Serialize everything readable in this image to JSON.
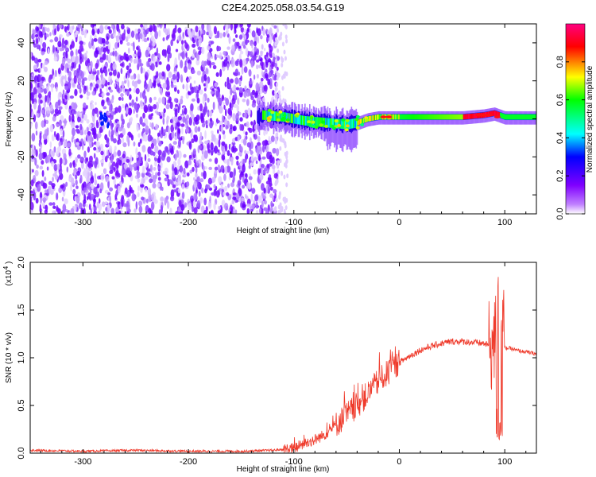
{
  "title": "C2E4.2025.058.03.54.G19",
  "chart_data": [
    {
      "type": "heatmap",
      "xlabel": "Height of straight line (km)",
      "ylabel": "Frequency (Hz)",
      "xlim": [
        -350,
        130
      ],
      "ylim": [
        -50,
        50
      ],
      "x_ticks": [
        -300,
        -200,
        -100,
        0,
        100
      ],
      "y_ticks": [
        -40,
        -20,
        0,
        20,
        40
      ],
      "colorbar": {
        "label": "Normalized spectral amplitude",
        "range": [
          0,
          1
        ],
        "ticks": [
          "0.0",
          "0.2",
          "0.4",
          "0.6",
          "0.8"
        ],
        "tick_values": [
          0,
          0.2,
          0.4,
          0.6,
          0.8
        ],
        "colors": [
          "#ffffff",
          "#8000ff",
          "#0000ff",
          "#00ffff",
          "#00ff00",
          "#ffff00",
          "#ff0000",
          "#ff0080"
        ]
      },
      "ridge": {
        "x": [
          -130,
          -110,
          -90,
          -70,
          -50,
          -40,
          -30,
          -20,
          0,
          20,
          40,
          60,
          80,
          90,
          100,
          130
        ],
        "y": [
          2,
          1,
          -1,
          -2,
          -3,
          -2,
          0,
          1,
          1,
          1,
          1,
          1,
          2,
          3,
          1,
          1
        ]
      }
    },
    {
      "type": "line",
      "xlabel": "Height of straight line (km)",
      "ylabel": "SNR (10 * v/v)",
      "y_multiplier": "(x10",
      "y_multiplier_exp": "4",
      "xlim": [
        -350,
        130
      ],
      "ylim": [
        0,
        2
      ],
      "x_ticks": [
        -300,
        -200,
        -100,
        0,
        100
      ],
      "y_ticks": [
        "0.0",
        "0.5",
        "1.0",
        "1.5",
        "2.0"
      ],
      "y_tick_values": [
        0,
        0.5,
        1,
        1.5,
        2
      ],
      "series": [
        {
          "color": "#ef3b2c",
          "x": [
            -350,
            -300,
            -250,
            -200,
            -150,
            -120,
            -100,
            -90,
            -80,
            -70,
            -60,
            -50,
            -40,
            -30,
            -20,
            -10,
            0,
            10,
            20,
            30,
            40,
            50,
            60,
            70,
            80,
            85,
            90,
            95,
            97,
            100,
            105,
            110,
            120,
            130
          ],
          "y": [
            0.03,
            0.02,
            0.03,
            0.02,
            0.02,
            0.03,
            0.05,
            0.1,
            0.14,
            0.2,
            0.3,
            0.4,
            0.5,
            0.62,
            0.75,
            0.85,
            0.95,
            1.02,
            1.08,
            1.12,
            1.15,
            1.17,
            1.17,
            1.16,
            1.15,
            1.13,
            1.12,
            1.4,
            1.6,
            1.1,
            1.1,
            1.08,
            1.06,
            1.04
          ]
        }
      ]
    }
  ]
}
